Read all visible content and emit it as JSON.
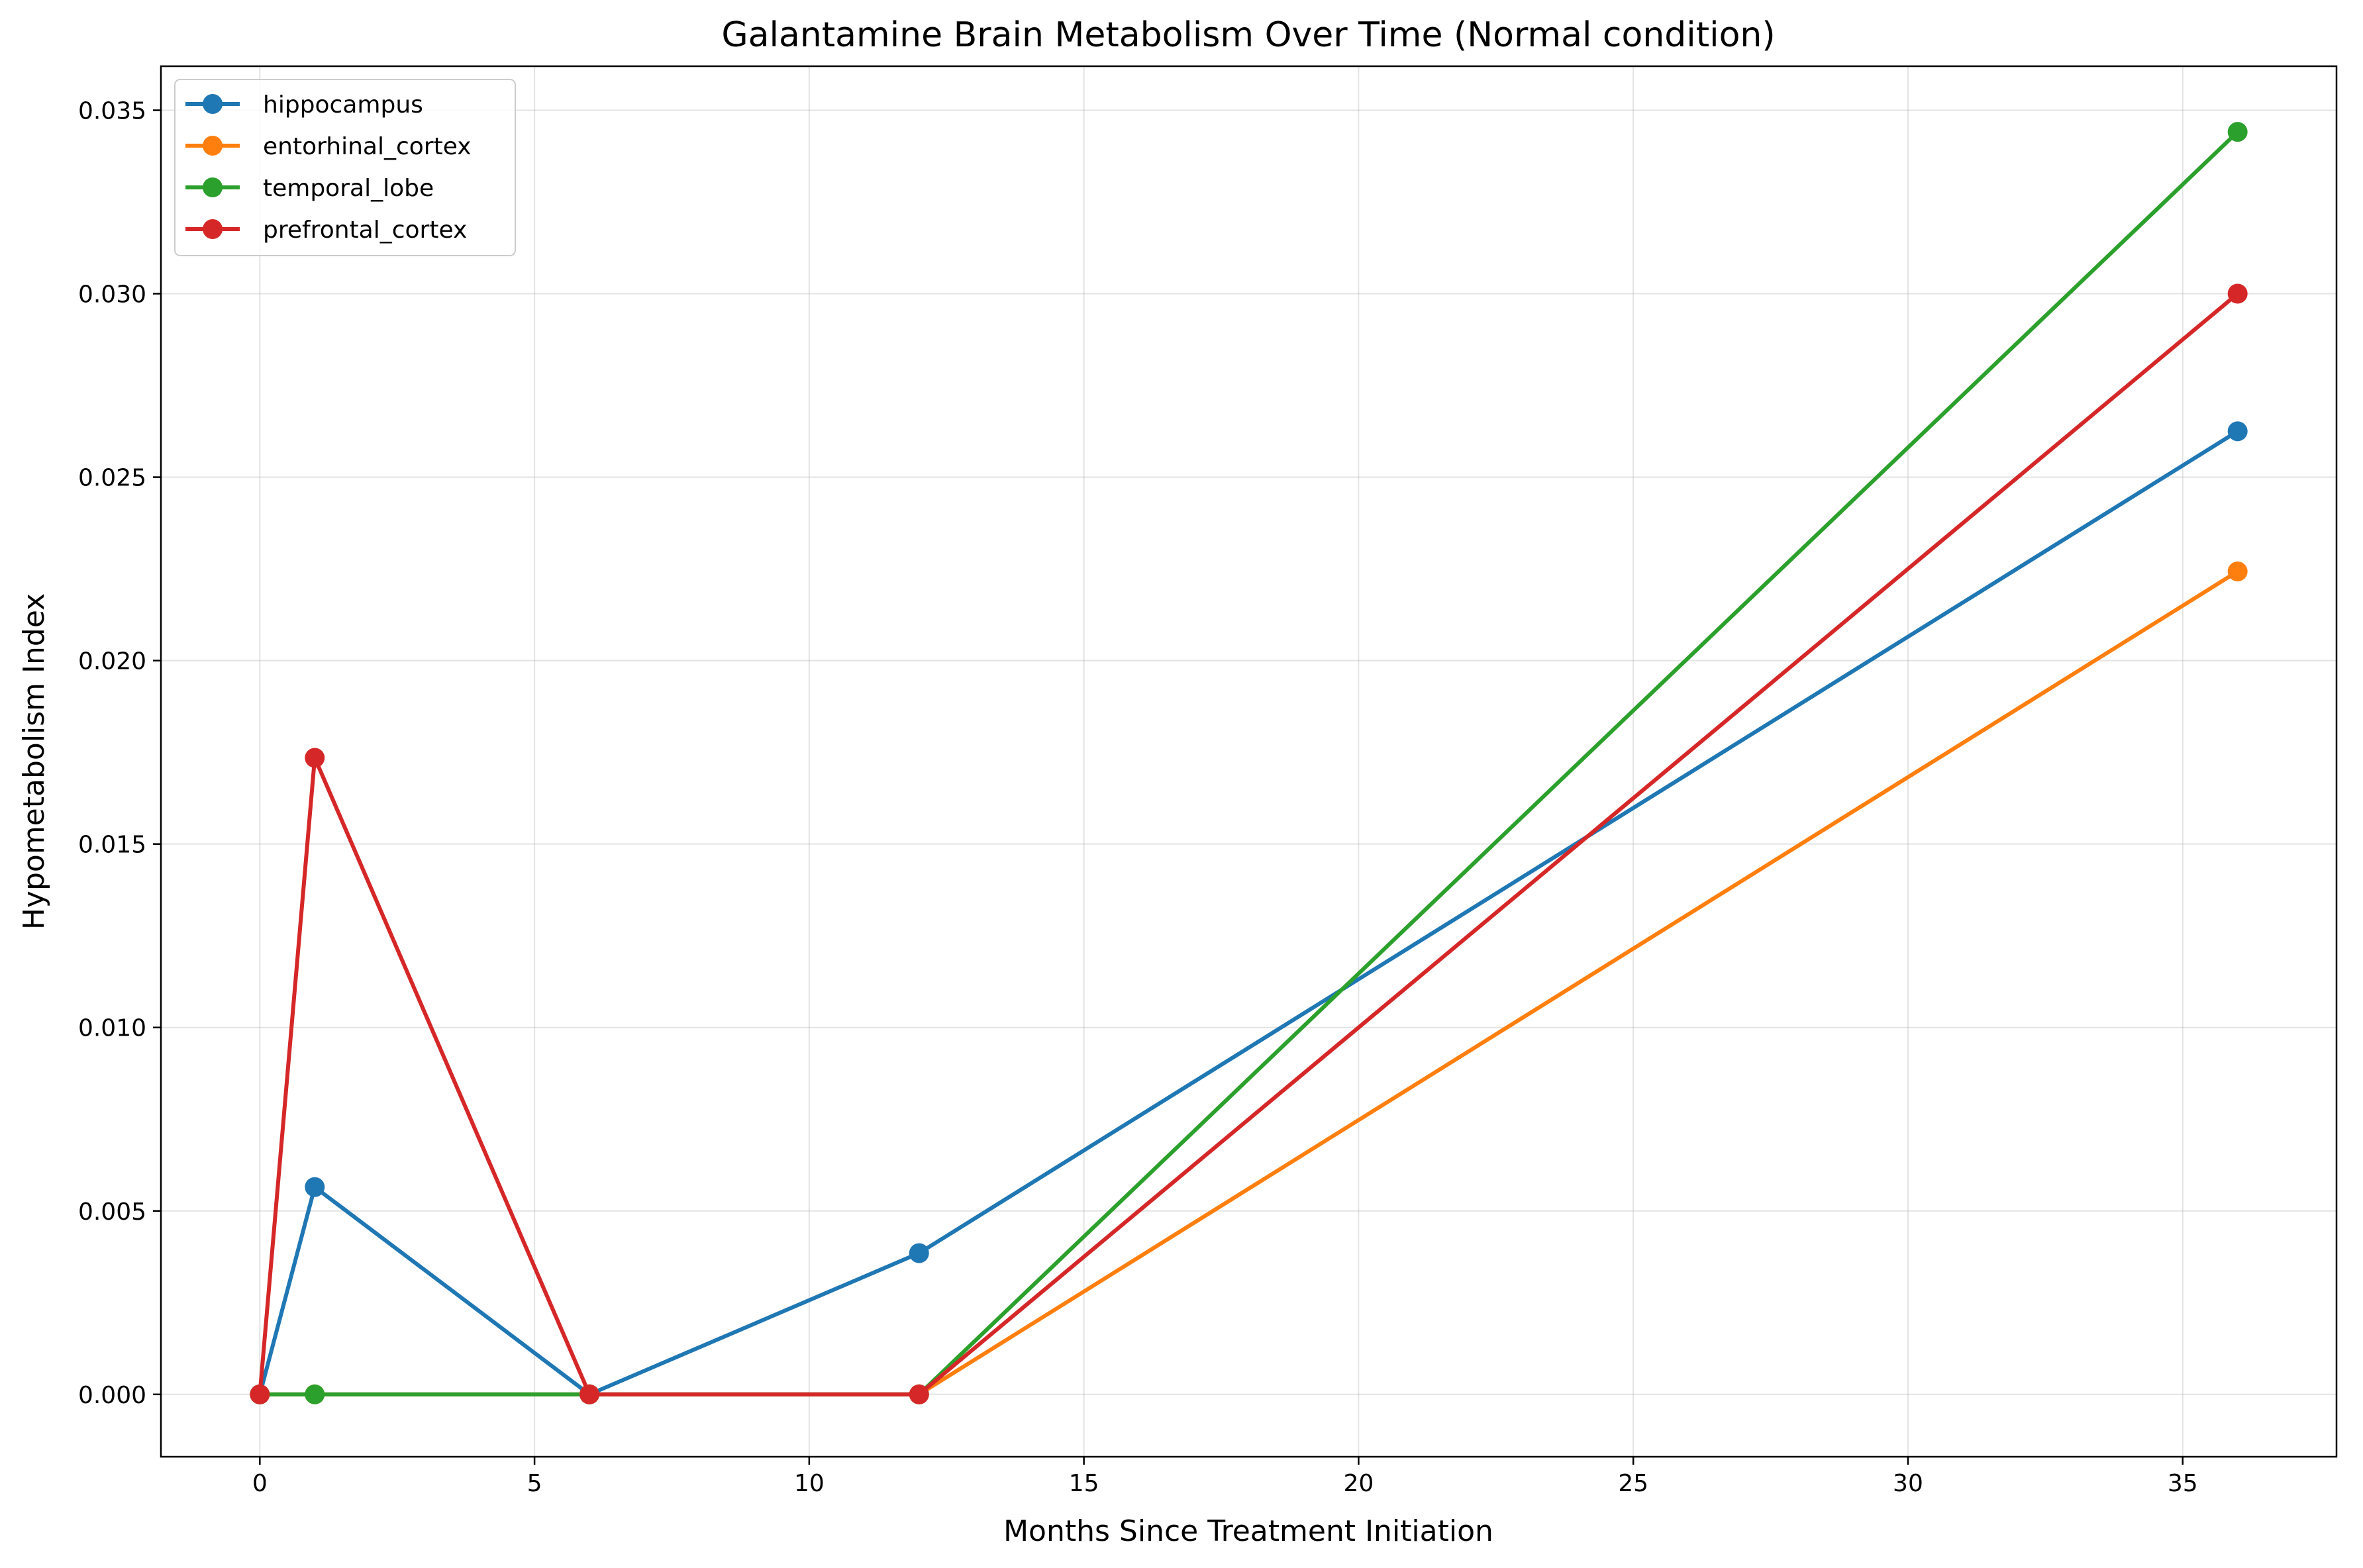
{
  "chart_data": {
    "type": "line",
    "title": "Galantamine Brain Metabolism Over Time (Normal condition)",
    "xlabel": "Months Since Treatment Initiation",
    "ylabel": "Hypometabolism Index",
    "xlim": [
      -1.8,
      37.8
    ],
    "ylim": [
      -0.0017,
      0.0362
    ],
    "xticks": [
      0,
      5,
      10,
      15,
      20,
      25,
      30,
      35
    ],
    "xtick_labels": [
      "0",
      "5",
      "10",
      "15",
      "20",
      "25",
      "30",
      "35"
    ],
    "yticks": [
      0.0,
      0.005,
      0.01,
      0.015,
      0.02,
      0.025,
      0.03,
      0.035
    ],
    "ytick_labels": [
      "0.000",
      "0.005",
      "0.010",
      "0.015",
      "0.020",
      "0.025",
      "0.030",
      "0.035"
    ],
    "grid": true,
    "legend_position": "top-left",
    "x": [
      0,
      1,
      6,
      12,
      36
    ],
    "series": [
      {
        "name": "hippocampus",
        "color": "#1f77b4",
        "values": [
          0.0,
          0.00565,
          0.0,
          0.00385,
          0.02625
        ]
      },
      {
        "name": "entorhinal_cortex",
        "color": "#ff7f0e",
        "values": [
          0.0,
          0.0,
          0.0,
          0.0,
          0.02243
        ]
      },
      {
        "name": "temporal_lobe",
        "color": "#2ca02c",
        "values": [
          0.0,
          0.0,
          0.0,
          0.0,
          0.03441
        ]
      },
      {
        "name": "prefrontal_cortex",
        "color": "#d62728",
        "values": [
          0.0,
          0.01735,
          0.0,
          0.0,
          0.03
        ]
      }
    ]
  }
}
